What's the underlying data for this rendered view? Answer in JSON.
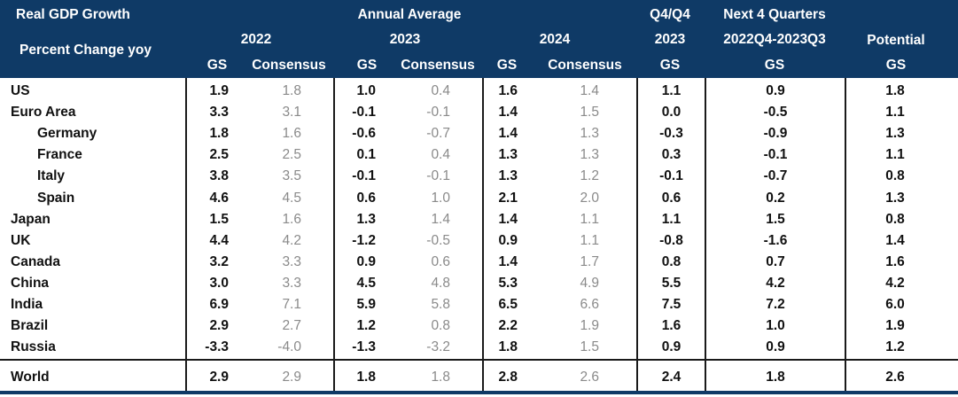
{
  "header": {
    "title": "Real GDP Growth",
    "subtitle": "Percent Change yoy",
    "annual_average": "Annual Average",
    "year_2022": "2022",
    "year_2023": "2023",
    "year_2024": "2024",
    "q4q4": "Q4/Q4",
    "q4q4_year": "2023",
    "next4": "Next 4 Quarters",
    "next4_range": "2022Q4-2023Q3",
    "potential": "Potential",
    "gs": "GS",
    "consensus": "Consensus"
  },
  "rows": [
    {
      "label": "US",
      "indent": false,
      "v": [
        "1.9",
        "1.8",
        "1.0",
        "0.4",
        "1.6",
        "1.4",
        "1.1",
        "0.9",
        "1.8"
      ]
    },
    {
      "label": "Euro Area",
      "indent": false,
      "v": [
        "3.3",
        "3.1",
        "-0.1",
        "-0.1",
        "1.4",
        "1.5",
        "0.0",
        "-0.5",
        "1.1"
      ]
    },
    {
      "label": "Germany",
      "indent": true,
      "v": [
        "1.8",
        "1.6",
        "-0.6",
        "-0.7",
        "1.4",
        "1.3",
        "-0.3",
        "-0.9",
        "1.3"
      ]
    },
    {
      "label": "France",
      "indent": true,
      "v": [
        "2.5",
        "2.5",
        "0.1",
        "0.4",
        "1.3",
        "1.3",
        "0.3",
        "-0.1",
        "1.1"
      ]
    },
    {
      "label": "Italy",
      "indent": true,
      "v": [
        "3.8",
        "3.5",
        "-0.1",
        "-0.1",
        "1.3",
        "1.2",
        "-0.1",
        "-0.7",
        "0.8"
      ]
    },
    {
      "label": "Spain",
      "indent": true,
      "v": [
        "4.6",
        "4.5",
        "0.6",
        "1.0",
        "2.1",
        "2.0",
        "0.6",
        "0.2",
        "1.3"
      ]
    },
    {
      "label": "Japan",
      "indent": false,
      "v": [
        "1.5",
        "1.6",
        "1.3",
        "1.4",
        "1.4",
        "1.1",
        "1.1",
        "1.5",
        "0.8"
      ]
    },
    {
      "label": "UK",
      "indent": false,
      "v": [
        "4.4",
        "4.2",
        "-1.2",
        "-0.5",
        "0.9",
        "1.1",
        "-0.8",
        "-1.6",
        "1.4"
      ]
    },
    {
      "label": "Canada",
      "indent": false,
      "v": [
        "3.2",
        "3.3",
        "0.9",
        "0.6",
        "1.4",
        "1.7",
        "0.8",
        "0.7",
        "1.6"
      ]
    },
    {
      "label": "China",
      "indent": false,
      "v": [
        "3.0",
        "3.3",
        "4.5",
        "4.8",
        "5.3",
        "4.9",
        "5.5",
        "4.2",
        "4.2"
      ]
    },
    {
      "label": "India",
      "indent": false,
      "v": [
        "6.9",
        "7.1",
        "5.9",
        "5.8",
        "6.5",
        "6.6",
        "7.5",
        "7.2",
        "6.0"
      ]
    },
    {
      "label": "Brazil",
      "indent": false,
      "v": [
        "2.9",
        "2.7",
        "1.2",
        "0.8",
        "2.2",
        "1.9",
        "1.6",
        "1.0",
        "1.9"
      ]
    },
    {
      "label": "Russia",
      "indent": false,
      "v": [
        "-3.3",
        "-4.0",
        "-1.3",
        "-3.2",
        "1.8",
        "1.5",
        "0.9",
        "0.9",
        "1.2"
      ]
    }
  ],
  "world": {
    "label": "World",
    "v": [
      "2.9",
      "2.9",
      "1.8",
      "1.8",
      "2.8",
      "2.6",
      "2.4",
      "1.8",
      "2.6"
    ]
  },
  "colors": {
    "header_bg": "#0f3a66",
    "header_text": "#ffffff",
    "gs_text": "#111111",
    "consensus_text": "#8a8a8a"
  }
}
